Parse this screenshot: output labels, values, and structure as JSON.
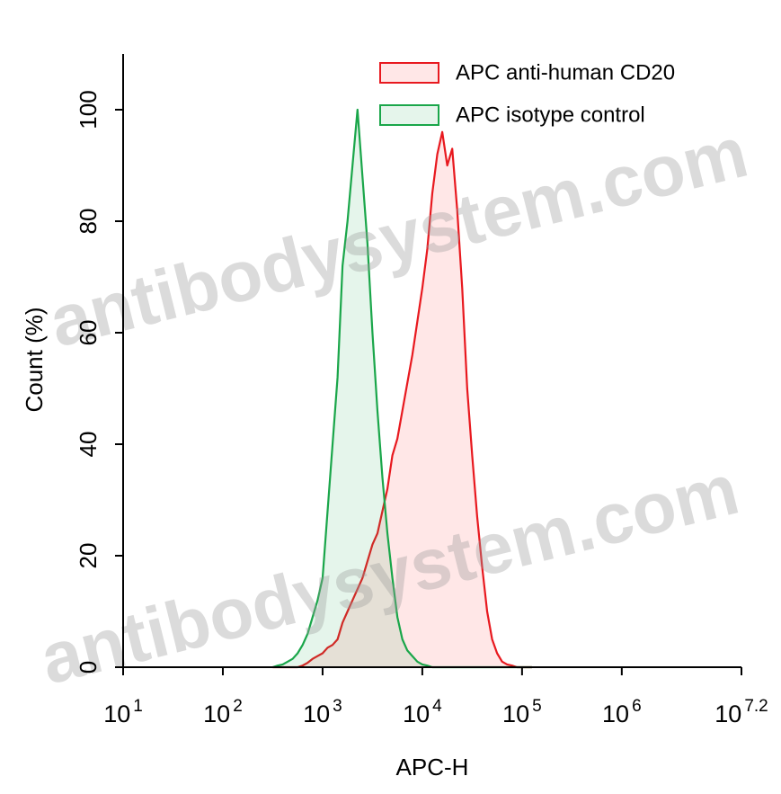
{
  "chart_data": {
    "type": "area",
    "xlabel": "APC-H",
    "ylabel": "Count (%)",
    "xscale": "log",
    "xlim": [
      10,
      15848931.92
    ],
    "ylim": [
      0,
      110
    ],
    "xticks": [
      {
        "value": 10,
        "label": "10",
        "exponent": "1"
      },
      {
        "value": 100,
        "label": "10",
        "exponent": "2"
      },
      {
        "value": 1000,
        "label": "10",
        "exponent": "3"
      },
      {
        "value": 10000,
        "label": "10",
        "exponent": "4"
      },
      {
        "value": 100000,
        "label": "10",
        "exponent": "5"
      },
      {
        "value": 1000000,
        "label": "10",
        "exponent": "6"
      },
      {
        "value": 15848931.92,
        "label": "10",
        "exponent": "7.2"
      }
    ],
    "yticks": [
      0,
      20,
      40,
      60,
      80,
      100
    ],
    "legend": "top-right",
    "watermark": "antibodysystem.com",
    "x": [
      316,
      355,
      398,
      447,
      501,
      562,
      631,
      708,
      794,
      891,
      1000,
      1122,
      1259,
      1413,
      1585,
      1778,
      1995,
      2239,
      2512,
      2818,
      3162,
      3548,
      3981,
      4467,
      5012,
      5623,
      6310,
      7079,
      7943,
      8913,
      10000,
      11220,
      12589,
      14125,
      15849,
      17783,
      19953,
      22387,
      25119,
      28184,
      31623,
      35481,
      39811,
      44668,
      50119,
      56234,
      63096,
      70795,
      79433,
      89125,
      100000,
      112202,
      125893
    ],
    "series": [
      {
        "name": "APC anti-human CD20",
        "color": "#e8191f",
        "fill": "rgba(255,60,60,0.12)",
        "values": [
          0,
          0,
          0,
          0,
          0,
          0,
          0.3,
          0.8,
          1.5,
          2,
          2.5,
          3.5,
          4,
          5,
          8,
          10,
          12,
          14,
          16,
          19,
          22,
          24,
          28,
          32,
          38,
          41,
          46,
          51,
          56,
          62,
          68,
          75,
          85,
          92,
          96,
          90,
          93,
          82,
          68,
          50,
          38,
          27,
          18,
          10,
          5,
          2.5,
          1,
          0.5,
          0.3,
          0,
          0,
          0,
          0
        ]
      },
      {
        "name": "APC isotype control",
        "color": "#1aa64a",
        "fill": "rgba(40,170,90,0.12)",
        "values": [
          0,
          0.3,
          0.5,
          1,
          1.5,
          2.5,
          4,
          6,
          9,
          12,
          16,
          28,
          40,
          52,
          72,
          80,
          90,
          100,
          88,
          76,
          60,
          46,
          34,
          24,
          16,
          9,
          5,
          3,
          2,
          1,
          0.5,
          0.3,
          0,
          0,
          0,
          0,
          0,
          0,
          0,
          0,
          0,
          0,
          0,
          0,
          0,
          0,
          0,
          0,
          0,
          0,
          0,
          0,
          0
        ]
      }
    ]
  }
}
